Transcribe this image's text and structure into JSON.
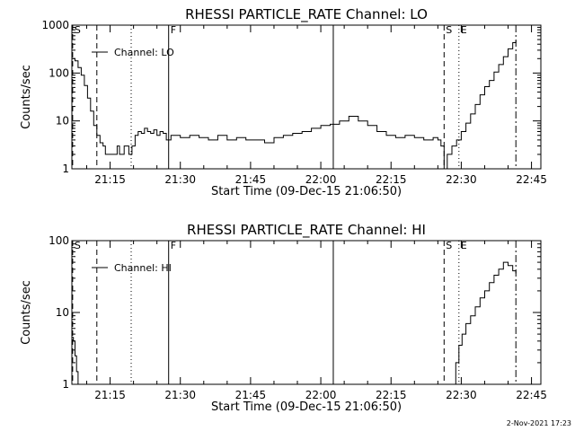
{
  "footer": {
    "timestamp": "2-Nov-2021 17:23"
  },
  "chart_data": [
    {
      "type": "line",
      "title": "RHESSI PARTICLE_RATE Channel: LO",
      "xlabel": "Start Time (09-Dec-15 21:06:50)",
      "ylabel": "Counts/sec",
      "y_scale": "log",
      "ylim": [
        1,
        1000
      ],
      "xlim": [
        "21:06:50",
        "22:47:00"
      ],
      "x_ticks": [
        "21:15",
        "21:30",
        "21:45",
        "22:00",
        "22:15",
        "22:30",
        "22:45"
      ],
      "y_ticks": [
        "1",
        "10",
        "100",
        "1000"
      ],
      "legend": {
        "position": "top-left",
        "entries": [
          "Channel: LO"
        ]
      },
      "event_markers": [
        {
          "label": "S",
          "time": "21:07:00",
          "style": "dashed"
        },
        {
          "label": "",
          "time": "21:12:10",
          "style": "dashed"
        },
        {
          "label": "",
          "time": "21:19:30",
          "style": "dotted"
        },
        {
          "label": "F",
          "time": "21:27:30",
          "style": "solid"
        },
        {
          "label": "",
          "time": "22:02:40",
          "style": "solid"
        },
        {
          "label": "S",
          "time": "22:26:20",
          "style": "dashed"
        },
        {
          "label": "E",
          "time": "22:29:30",
          "style": "dotted"
        },
        {
          "label": "",
          "time": "22:41:40",
          "style": "dashdot"
        }
      ],
      "series": [
        {
          "name": "Channel: LO",
          "points": [
            [
              "21:06:50",
              200
            ],
            [
              "21:07:30",
              180
            ],
            [
              "21:08:10",
              130
            ],
            [
              "21:08:50",
              90
            ],
            [
              "21:09:30",
              55
            ],
            [
              "21:10:10",
              30
            ],
            [
              "21:10:50",
              16
            ],
            [
              "21:11:30",
              8
            ],
            [
              "21:12:10",
              5
            ],
            [
              "21:12:50",
              3.5
            ],
            [
              "21:13:30",
              3
            ],
            [
              "21:14:00",
              2
            ],
            [
              "21:16:00",
              2
            ],
            [
              "21:16:30",
              3
            ],
            [
              "21:17:00",
              2
            ],
            [
              "21:18:00",
              3
            ],
            [
              "21:19:00",
              2
            ],
            [
              "21:19:40",
              3
            ],
            [
              "21:20:20",
              5
            ],
            [
              "21:21:00",
              6
            ],
            [
              "21:21:40",
              5.5
            ],
            [
              "21:22:20",
              7
            ],
            [
              "21:23:00",
              6
            ],
            [
              "21:23:40",
              5.5
            ],
            [
              "21:24:20",
              6.5
            ],
            [
              "21:25:00",
              5
            ],
            [
              "21:25:40",
              6
            ],
            [
              "21:26:20",
              5.5
            ],
            [
              "21:27:00",
              4
            ],
            [
              "21:28:00",
              5
            ],
            [
              "21:30:00",
              4.5
            ],
            [
              "21:32:00",
              5
            ],
            [
              "21:34:00",
              4.5
            ],
            [
              "21:36:00",
              4
            ],
            [
              "21:38:00",
              5
            ],
            [
              "21:40:00",
              4
            ],
            [
              "21:42:00",
              4.5
            ],
            [
              "21:44:00",
              4
            ],
            [
              "21:46:00",
              4
            ],
            [
              "21:48:00",
              3.5
            ],
            [
              "21:50:00",
              4.5
            ],
            [
              "21:52:00",
              5
            ],
            [
              "21:54:00",
              5.5
            ],
            [
              "21:56:00",
              6
            ],
            [
              "21:58:00",
              7
            ],
            [
              "22:00:00",
              8
            ],
            [
              "22:02:00",
              8.5
            ],
            [
              "22:04:00",
              10
            ],
            [
              "22:06:00",
              12.5
            ],
            [
              "22:08:00",
              10
            ],
            [
              "22:10:00",
              8
            ],
            [
              "22:12:00",
              6
            ],
            [
              "22:14:00",
              5
            ],
            [
              "22:16:00",
              4.5
            ],
            [
              "22:18:00",
              5
            ],
            [
              "22:20:00",
              4.5
            ],
            [
              "22:22:00",
              4
            ],
            [
              "22:24:00",
              4.5
            ],
            [
              "22:25:00",
              4
            ],
            [
              "22:25:40",
              3
            ],
            [
              "22:26:20",
              1
            ],
            [
              "22:27:00",
              2
            ],
            [
              "22:28:00",
              3
            ],
            [
              "22:29:00",
              4
            ],
            [
              "22:30:00",
              6
            ],
            [
              "22:31:00",
              9
            ],
            [
              "22:32:00",
              14
            ],
            [
              "22:33:00",
              22
            ],
            [
              "22:34:00",
              35
            ],
            [
              "22:35:00",
              52
            ],
            [
              "22:36:00",
              70
            ],
            [
              "22:37:00",
              105
            ],
            [
              "22:38:00",
              150
            ],
            [
              "22:39:00",
              220
            ],
            [
              "22:40:00",
              320
            ],
            [
              "22:41:00",
              430
            ],
            [
              "22:41:40",
              480
            ]
          ]
        }
      ]
    },
    {
      "type": "line",
      "title": "RHESSI PARTICLE_RATE Channel: HI",
      "xlabel": "Start Time (09-Dec-15 21:06:50)",
      "ylabel": "Counts/sec",
      "y_scale": "log",
      "ylim": [
        1,
        100
      ],
      "xlim": [
        "21:06:50",
        "22:47:00"
      ],
      "x_ticks": [
        "21:15",
        "21:30",
        "21:45",
        "22:00",
        "22:15",
        "22:30",
        "22:45"
      ],
      "y_ticks": [
        "1",
        "10",
        "100"
      ],
      "legend": {
        "position": "top-left",
        "entries": [
          "Channel: HI"
        ]
      },
      "event_markers": [
        {
          "label": "S",
          "time": "21:07:00",
          "style": "dashed"
        },
        {
          "label": "",
          "time": "21:12:10",
          "style": "dashed"
        },
        {
          "label": "",
          "time": "21:19:30",
          "style": "dotted"
        },
        {
          "label": "F",
          "time": "21:27:30",
          "style": "solid"
        },
        {
          "label": "",
          "time": "22:02:40",
          "style": "solid"
        },
        {
          "label": "S",
          "time": "22:26:20",
          "style": "dashed"
        },
        {
          "label": "E",
          "time": "22:29:30",
          "style": "dotted"
        },
        {
          "label": "",
          "time": "22:41:40",
          "style": "dashdot"
        }
      ],
      "series": [
        {
          "name": "Channel: HI",
          "segments": [
            [
              [
                "21:06:50",
                4.5
              ],
              [
                "21:07:10",
                4
              ],
              [
                "21:07:30",
                2.5
              ],
              [
                "21:07:50",
                1.5
              ],
              [
                "21:08:10",
                1
              ]
            ],
            [
              [
                "22:28:10",
                1
              ],
              [
                "22:28:50",
                2
              ],
              [
                "22:29:30",
                3.5
              ],
              [
                "22:30:10",
                5
              ],
              [
                "22:31:00",
                7
              ],
              [
                "22:32:00",
                9
              ],
              [
                "22:33:00",
                12
              ],
              [
                "22:34:00",
                16
              ],
              [
                "22:35:00",
                20
              ],
              [
                "22:36:00",
                26
              ],
              [
                "22:37:00",
                33
              ],
              [
                "22:38:00",
                40
              ],
              [
                "22:39:00",
                50
              ],
              [
                "22:40:00",
                45
              ],
              [
                "22:41:00",
                38
              ],
              [
                "22:41:40",
                35
              ]
            ]
          ]
        }
      ]
    }
  ]
}
